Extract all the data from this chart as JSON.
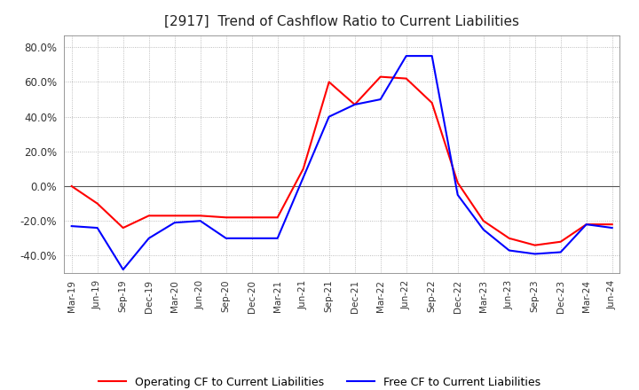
{
  "title": "[2917]  Trend of Cashflow Ratio to Current Liabilities",
  "ylim": [
    -50,
    87
  ],
  "yticks": [
    -40,
    -20,
    0,
    20,
    40,
    60,
    80
  ],
  "ytick_labels": [
    "-40.0%",
    "-20.0%",
    "0.0%",
    "20.0%",
    "40.0%",
    "60.0%",
    "80.0%"
  ],
  "x_labels": [
    "Mar-19",
    "Jun-19",
    "Sep-19",
    "Dec-19",
    "Mar-20",
    "Jun-20",
    "Sep-20",
    "Dec-20",
    "Mar-21",
    "Jun-21",
    "Sep-21",
    "Dec-21",
    "Mar-22",
    "Jun-22",
    "Sep-22",
    "Dec-22",
    "Mar-23",
    "Jun-23",
    "Sep-23",
    "Dec-23",
    "Mar-24",
    "Jun-24"
  ],
  "operating_cf": [
    0.0,
    -10.0,
    -24.0,
    -17.0,
    -17.0,
    -17.0,
    -18.0,
    -18.0,
    -18.0,
    10.0,
    60.0,
    47.0,
    63.0,
    62.0,
    48.0,
    2.0,
    -20.0,
    -30.0,
    -34.0,
    -32.0,
    -22.0,
    -22.0
  ],
  "free_cf": [
    -23.0,
    -24.0,
    -48.0,
    -30.0,
    -21.0,
    -20.0,
    -30.0,
    -30.0,
    -30.0,
    5.0,
    40.0,
    47.0,
    50.0,
    75.0,
    75.0,
    -5.0,
    -25.0,
    -37.0,
    -39.0,
    -38.0,
    -22.0,
    -24.0
  ],
  "operating_color": "#ff0000",
  "free_color": "#0000ff",
  "background_color": "#ffffff",
  "grid_color": "#aaaaaa",
  "title_fontsize": 11,
  "legend_operating": "Operating CF to Current Liabilities",
  "legend_free": "Free CF to Current Liabilities"
}
